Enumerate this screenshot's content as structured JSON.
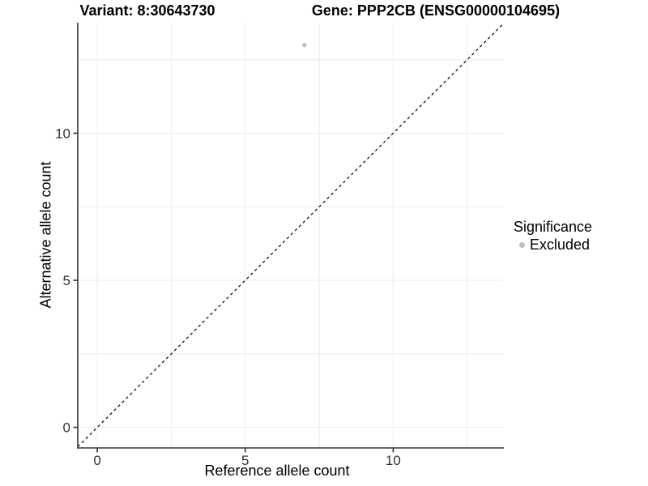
{
  "colors": {
    "background": "#ffffff",
    "grid": "#ececec",
    "axis_line": "#333333",
    "tick_mark": "#333333",
    "tick_label": "#333333",
    "title_text": "#000000",
    "point": "#bebebe",
    "reference_line": "#000000"
  },
  "chart_data": {
    "type": "scatter",
    "title_left": "Variant: 8:30643730",
    "title_right": "Gene: PPP2CB (ENSG00000104695)",
    "xlabel": "Reference allele count",
    "ylabel": "Alternative allele count",
    "xlim": [
      -0.66,
      13.74
    ],
    "ylim": [
      -0.7,
      13.76
    ],
    "grid": true,
    "x_ticks": [
      {
        "value": 0,
        "label": "0"
      },
      {
        "value": 5,
        "label": "5"
      },
      {
        "value": 10,
        "label": "10"
      }
    ],
    "y_ticks": [
      {
        "value": 0,
        "label": "0"
      },
      {
        "value": 5,
        "label": "5"
      },
      {
        "value": 10,
        "label": "10"
      }
    ],
    "minor_gridlines_x": [
      2.5,
      7.5,
      12.5
    ],
    "minor_gridlines_y": [
      2.5,
      7.5,
      12.5
    ],
    "reference_line": {
      "type": "identity",
      "slope": 1,
      "intercept": 0,
      "style": "dashed"
    },
    "series": [
      {
        "name": "Excluded",
        "color": "#bebebe",
        "marker": "circle",
        "points": [
          {
            "x": 7,
            "y": 13
          }
        ]
      }
    ],
    "legend": {
      "title": "Significance",
      "position": "right",
      "items": [
        {
          "label": "Excluded",
          "color": "#bebebe"
        }
      ]
    }
  }
}
